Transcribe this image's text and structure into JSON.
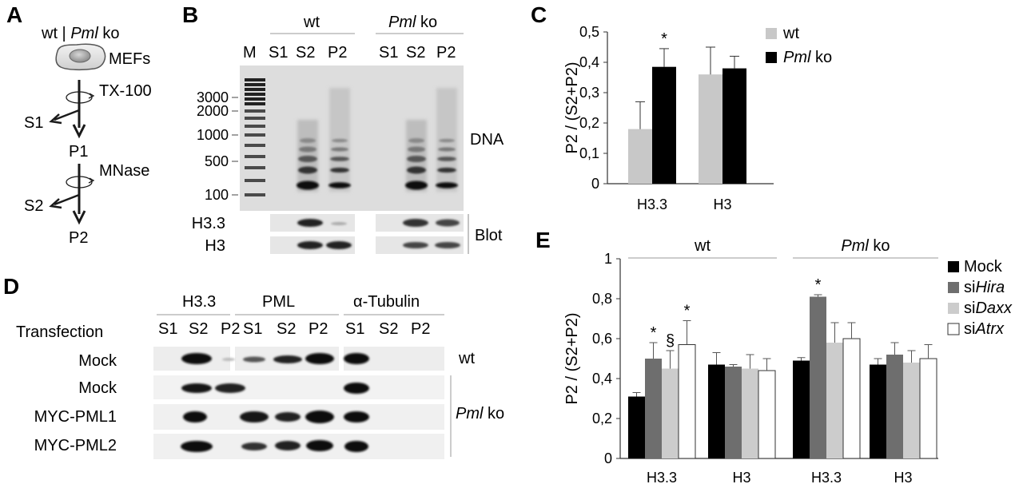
{
  "panels": {
    "A": {
      "label": "A",
      "header_wt": "wt | ",
      "header_ko": "Pml",
      "header_ko_suffix": " ko",
      "cell": "MEFs",
      "step1": "TX-100",
      "s1": "S1",
      "p1": "P1",
      "step2": "MNase",
      "s2": "S2",
      "p2": "P2"
    },
    "B": {
      "label": "B",
      "group_wt": "wt",
      "group_ko": "Pml",
      "group_ko_suffix": " ko",
      "lanes": [
        "M",
        "S1",
        "S2",
        "P2",
        "S1",
        "S2",
        "P2"
      ],
      "size_ladder": [
        "3000",
        "2000",
        "1000",
        "500",
        "100"
      ],
      "dna_label": "DNA",
      "blot_rows": [
        "H3.3",
        "H3"
      ],
      "blot_label": "Blot"
    },
    "D": {
      "label": "D",
      "transfection_label": "Transfection",
      "groups": [
        "H3.3",
        "PML",
        "α-Tubulin"
      ],
      "fractions": [
        "S1",
        "S2",
        "P2"
      ],
      "rows": [
        "Mock",
        "Mock",
        "MYC-PML1",
        "MYC-PML2"
      ],
      "side_wt": "wt",
      "side_ko": "Pml",
      "side_ko_suffix": " ko"
    }
  },
  "colors": {
    "wt": "#c8c8c8",
    "ko": "#000000",
    "mock": "#000000",
    "sihira": "#6e6e6e",
    "sidaxx": "#cccccc",
    "siatrx": "#ffffff"
  },
  "chart_data": [
    {
      "panel": "C",
      "type": "bar",
      "ylabel": "P2 / (S2+P2)",
      "ylim": [
        0,
        0.5
      ],
      "yticks": [
        "0",
        "0,1",
        "0,2",
        "0,3",
        "0,4",
        "0,5"
      ],
      "categories": [
        "H3.3",
        "H3"
      ],
      "series": [
        {
          "name": "wt",
          "values": [
            0.18,
            0.36
          ],
          "errors": [
            0.09,
            0.09
          ]
        },
        {
          "name": "ko",
          "values": [
            0.385,
            0.38
          ],
          "errors": [
            0.06,
            0.04
          ]
        }
      ],
      "legend": [
        {
          "text": "wt",
          "italic": ""
        },
        {
          "text": " ko",
          "italic": "Pml"
        }
      ],
      "annotations": [
        "*"
      ],
      "legend_position": "top-right"
    },
    {
      "panel": "E",
      "type": "bar",
      "ylabel": "P2 / (S2+P2)",
      "ylim": [
        0,
        1
      ],
      "yticks": [
        "0",
        "0,2",
        "0,4",
        "0,6",
        "0,8",
        "1"
      ],
      "groups": [
        "wt",
        "Pml ko"
      ],
      "group_labels": [
        {
          "italic": "",
          "text": "wt"
        },
        {
          "italic": "Pml",
          "text": " ko"
        }
      ],
      "categories": [
        "H3.3",
        "H3",
        "H3.3",
        "H3"
      ],
      "series": [
        {
          "name": "Mock",
          "values": [
            0.31,
            0.47,
            0.49,
            0.47
          ],
          "errors": [
            0.02,
            0.06,
            0.015,
            0.03
          ]
        },
        {
          "name": "siHira",
          "values": [
            0.5,
            0.46,
            0.81,
            0.52
          ],
          "errors": [
            0.08,
            0.01,
            0.01,
            0.06
          ]
        },
        {
          "name": "siDaxx",
          "values": [
            0.45,
            0.45,
            0.58,
            0.48
          ],
          "errors": [
            0.09,
            0.07,
            0.1,
            0.06
          ]
        },
        {
          "name": "siAtrx",
          "values": [
            0.57,
            0.44,
            0.6,
            0.5
          ],
          "errors": [
            0.12,
            0.06,
            0.08,
            0.07
          ]
        }
      ],
      "legend": [
        {
          "prefix": "Mock",
          "italic": ""
        },
        {
          "prefix": "si",
          "italic": "Hira"
        },
        {
          "prefix": "si",
          "italic": "Daxx"
        },
        {
          "prefix": "si",
          "italic": "Atrx"
        }
      ],
      "annotations": [
        "*",
        "§",
        "*",
        "*"
      ],
      "legend_position": "right"
    }
  ]
}
